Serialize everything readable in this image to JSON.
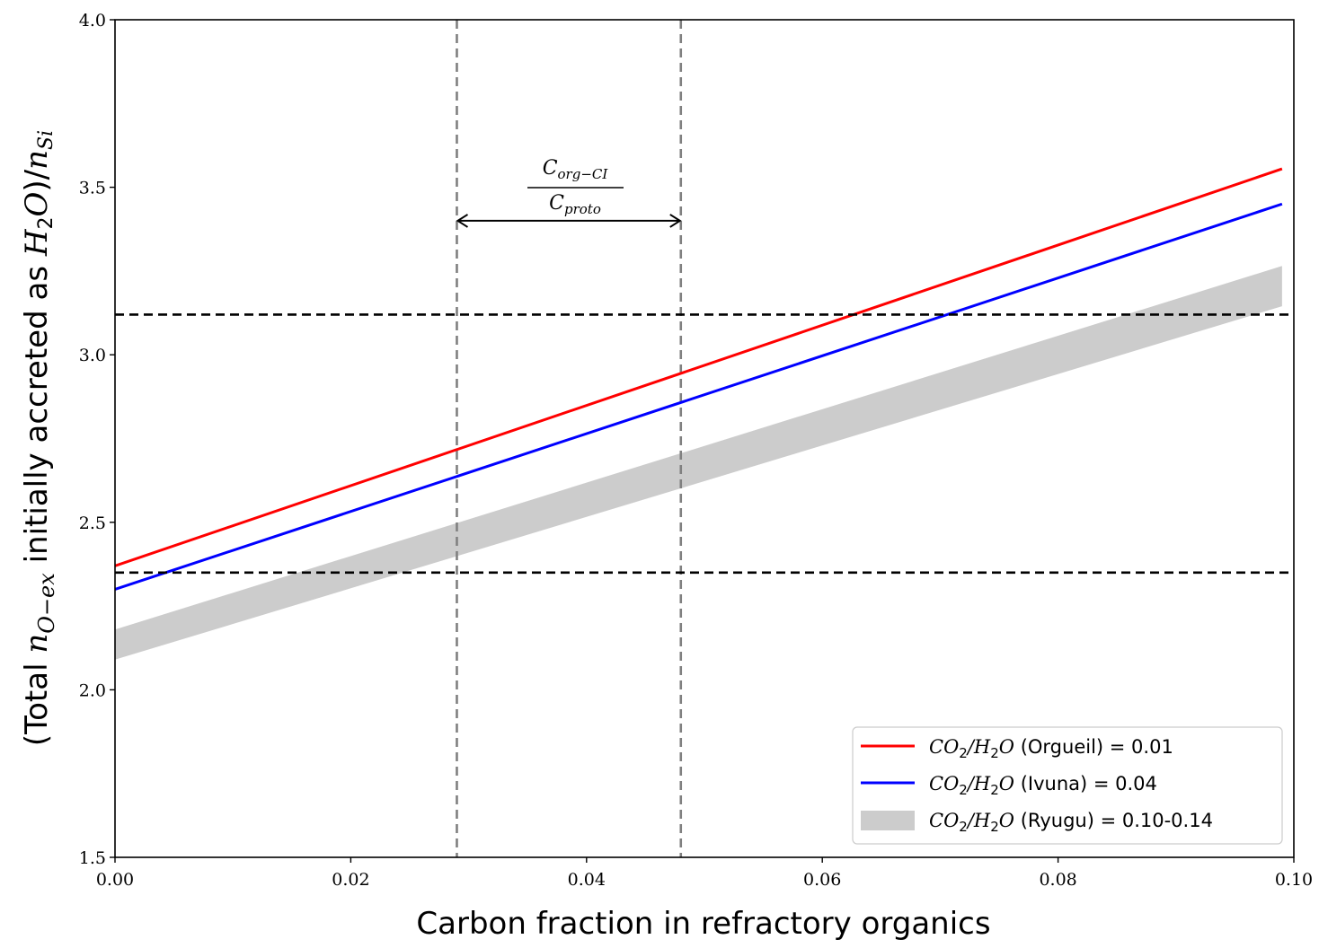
{
  "chart_data": {
    "type": "line",
    "xlabel": "Carbon fraction in refractory organics",
    "ylabel_parts": {
      "prefix": "(Total ",
      "n": "n",
      "n_sub": "O−ex",
      "middle": " initially accreted as ",
      "h": "H",
      "h_sub": "2",
      "o": "O",
      "close": ")/",
      "n2": "n",
      "n2_sub": "Si"
    },
    "xlim": [
      0.0,
      0.1
    ],
    "ylim": [
      1.5,
      4.0
    ],
    "x_ticks": [
      0.0,
      0.02,
      0.04,
      0.06,
      0.08,
      0.1
    ],
    "x_tick_labels": [
      "0.00",
      "0.02",
      "0.04",
      "0.06",
      "0.08",
      "0.10"
    ],
    "y_ticks": [
      1.5,
      2.0,
      2.5,
      3.0,
      3.5,
      4.0
    ],
    "y_tick_labels": [
      "1.5",
      "2.0",
      "2.5",
      "3.0",
      "3.5",
      "4.0"
    ],
    "series": [
      {
        "name": "Orgueil",
        "color": "#ff0000",
        "x": [
          0.0,
          0.099
        ],
        "y": [
          2.37,
          3.555
        ],
        "legend": {
          "co": "CO",
          "co_sub": "2",
          "slash": "/",
          "h": "H",
          "h_sub": "2",
          "o": "O",
          "rest": " (Orgueil) = 0.01"
        }
      },
      {
        "name": "Ivuna",
        "color": "#0000ff",
        "x": [
          0.0,
          0.099
        ],
        "y": [
          2.3,
          3.45
        ],
        "legend": {
          "co": "CO",
          "co_sub": "2",
          "slash": "/",
          "h": "H",
          "h_sub": "2",
          "o": "O",
          "rest": " (Ivuna) = 0.04"
        }
      }
    ],
    "band": {
      "name": "Ryugu",
      "color": "#cccccc",
      "x": [
        0.0,
        0.099
      ],
      "y_upper": [
        2.18,
        3.265
      ],
      "y_lower": [
        2.09,
        3.145
      ],
      "legend": {
        "co": "CO",
        "co_sub": "2",
        "slash": "/",
        "h": "H",
        "h_sub": "2",
        "o": "O",
        "rest": " (Ryugu) = 0.10-0.14"
      }
    },
    "hlines": [
      {
        "y": 3.12,
        "color": "#000000",
        "style": "dashed"
      },
      {
        "y": 2.35,
        "color": "#000000",
        "style": "dashed"
      }
    ],
    "vlines": [
      {
        "x": 0.029,
        "color": "#808080",
        "style": "dashed"
      },
      {
        "x": 0.048,
        "color": "#808080",
        "style": "dashed"
      }
    ],
    "annotation": {
      "x_from": 0.029,
      "x_to": 0.048,
      "y": 3.4,
      "numerator": "C",
      "numerator_sub": "org−CI",
      "denominator": "C",
      "denominator_sub": "proto"
    },
    "legend_position": "lower-right"
  }
}
